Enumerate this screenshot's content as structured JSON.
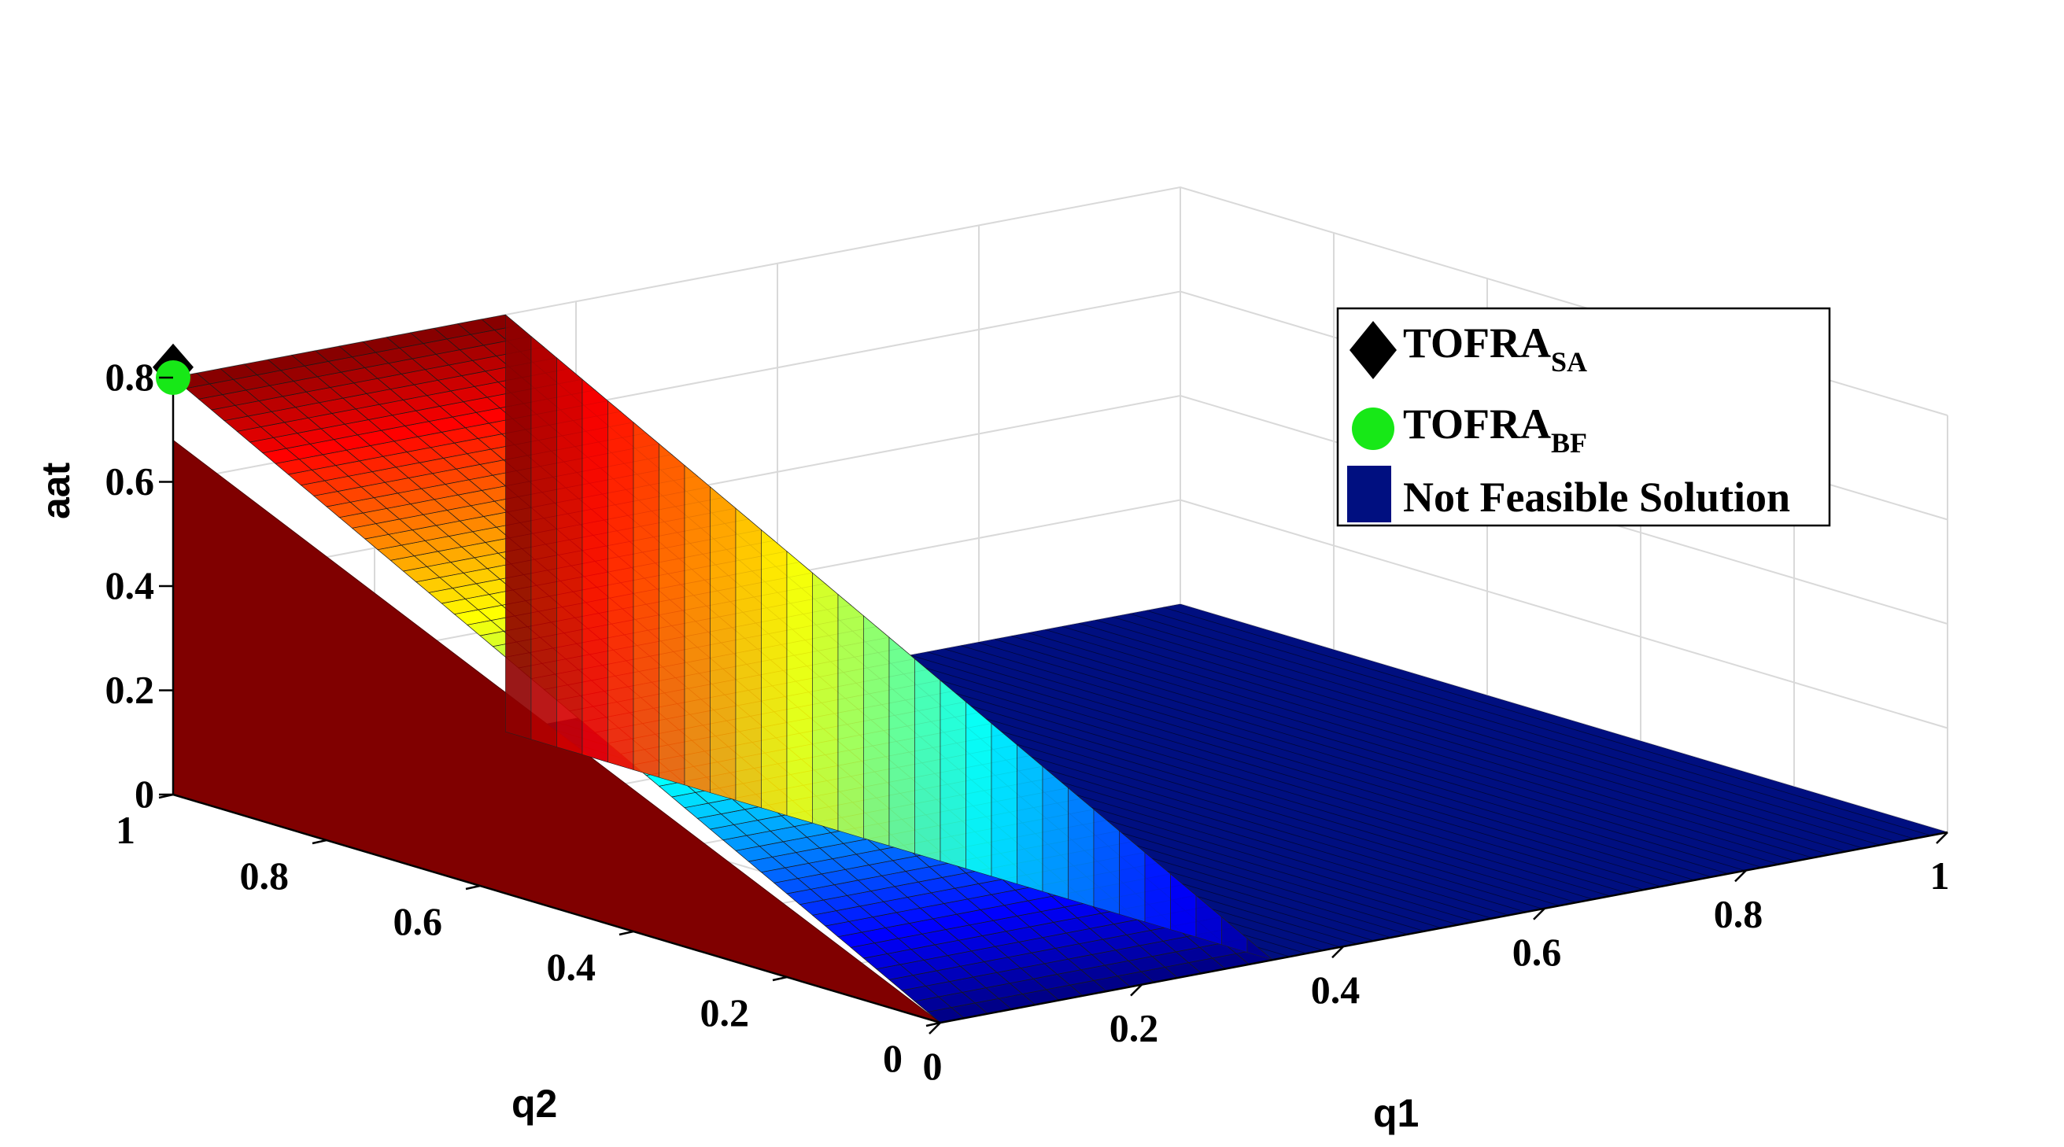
{
  "chart_data": {
    "type": "surface3d",
    "xlabel": "q1",
    "ylabel": "q2",
    "zlabel": "aat",
    "xlim": [
      0,
      1
    ],
    "ylim": [
      0,
      1
    ],
    "zlim": [
      0,
      0.8
    ],
    "x_ticks": [
      "0",
      "0.2",
      "0.4",
      "0.6",
      "0.8",
      "1"
    ],
    "y_ticks": [
      "0",
      "0.2",
      "0.4",
      "0.6",
      "0.8",
      "1"
    ],
    "z_ticks": [
      "0",
      "0.2",
      "0.4",
      "0.6",
      "0.8"
    ],
    "feasible_q1_max": 0.33,
    "aat_max": 0.8,
    "colormap": "jet",
    "infeasible_color": "#000f80",
    "markers": [
      {
        "name": "TOFRA_SA",
        "q1": 0.0,
        "q2": 1.0,
        "aat": 0.82,
        "color": "#000000",
        "shape": "diamond"
      },
      {
        "name": "TOFRA_BF",
        "q1": 0.0,
        "q2": 1.0,
        "aat": 0.8,
        "color": "#17e817",
        "shape": "circle"
      }
    ],
    "legend": {
      "position": "right",
      "entries": [
        {
          "main": "TOFRA",
          "sub": "SA",
          "color": "#000000",
          "shape": "diamond"
        },
        {
          "main": "TOFRA",
          "sub": "BF",
          "color": "#17e817",
          "shape": "circle"
        },
        {
          "main": "Not Feasible Solution",
          "sub": "",
          "color": "#000f80",
          "shape": "square"
        }
      ]
    }
  }
}
